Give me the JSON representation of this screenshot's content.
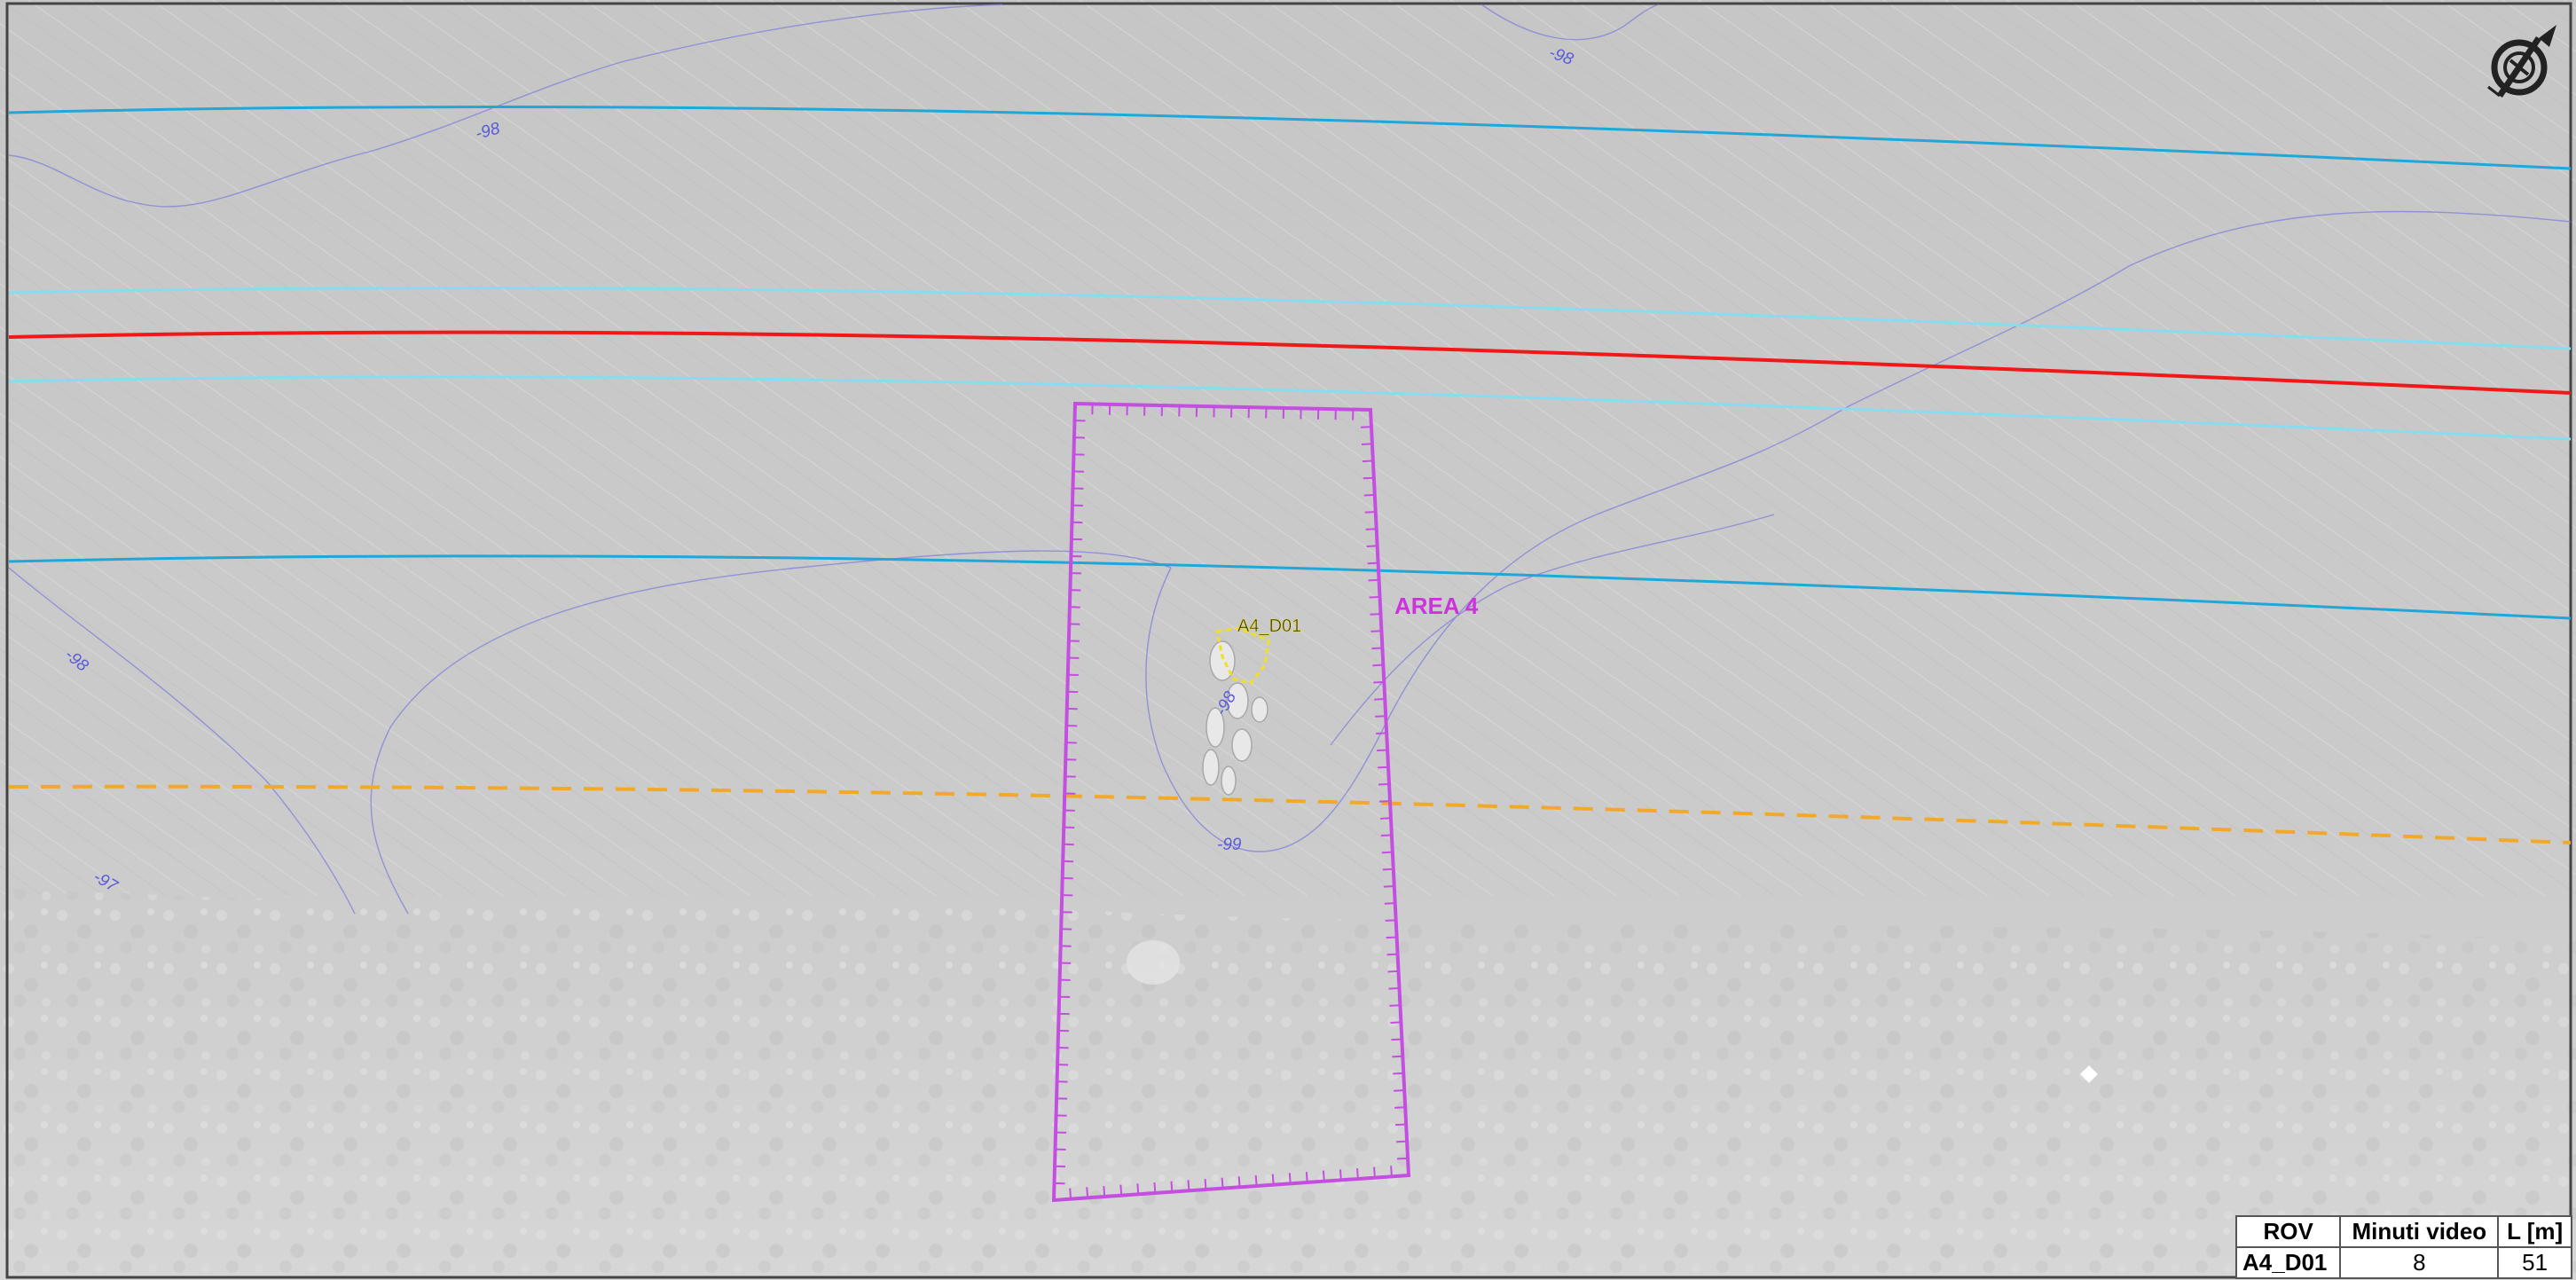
{
  "map": {
    "area_label": "AREA 4",
    "target_label": "A4_D01",
    "contour_labels": [
      "-98",
      "-98",
      "-98",
      "-98",
      "-97",
      "-99"
    ],
    "colors": {
      "background": "#c9c9c9",
      "background_light": "#d4d4d4",
      "cable_route": "#ff1a1a",
      "corridor_inner": "#7fd8ef",
      "corridor_outer": "#1fa8d8",
      "dashed_line": "#f2a92a",
      "area_polygon": "#c44ee0",
      "area_label": "#cc33dd",
      "target_outline": "#f0e020",
      "contour": "#6a6adf"
    }
  },
  "north_arrow": {
    "icon": "north-arrow-icon"
  },
  "table": {
    "headers": [
      "ROV",
      "Minuti video",
      "L [m]"
    ],
    "rows": [
      {
        "id": "A4_D01",
        "minutes": "8",
        "length": "51"
      }
    ]
  }
}
